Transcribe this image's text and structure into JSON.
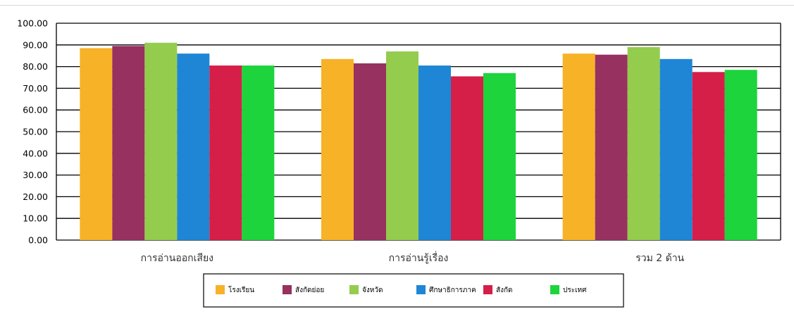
{
  "chart_data": {
    "type": "bar",
    "categories": [
      "การอ่านออกเสียง",
      "การอ่านรู้เรื่อง",
      "รวม 2 ด้าน"
    ],
    "series": [
      {
        "name": "โรงเรียน",
        "color": "#F7B227",
        "values": [
          88.5,
          83.5,
          86.0
        ]
      },
      {
        "name": "สังกัดย่อย",
        "color": "#97315F",
        "values": [
          89.5,
          81.5,
          85.5
        ]
      },
      {
        "name": "จังหวัด",
        "color": "#94CC4E",
        "values": [
          91.0,
          87.0,
          89.0
        ]
      },
      {
        "name": "ศึกษาธิการภาค",
        "color": "#1F86D6",
        "values": [
          86.0,
          80.5,
          83.5
        ]
      },
      {
        "name": "สังกัด",
        "color": "#D51F48",
        "values": [
          80.5,
          75.5,
          77.5
        ]
      },
      {
        "name": "ประเทศ",
        "color": "#1DD43D",
        "values": [
          80.5,
          77.0,
          78.5
        ]
      }
    ],
    "yticks": [
      "0.00",
      "10.00",
      "20.00",
      "30.00",
      "40.00",
      "50.00",
      "60.00",
      "70.00",
      "80.00",
      "90.00",
      "100.00"
    ],
    "ylim": [
      0,
      100
    ],
    "grid": true,
    "legend_position": "bottom",
    "title": "",
    "xlabel": "",
    "ylabel": ""
  }
}
